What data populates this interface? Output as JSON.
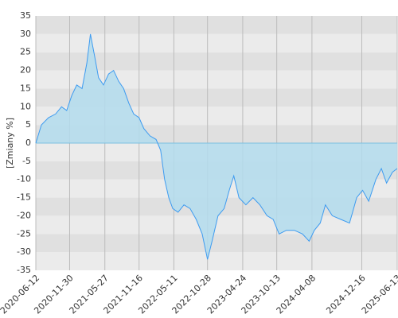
{
  "chart_data": {
    "type": "area",
    "y_label": "[Zmiany %]",
    "x": [
      "2020-06-12",
      "2020-07-10",
      "2020-08-15",
      "2020-09-20",
      "2020-10-20",
      "2020-11-15",
      "2020-12-10",
      "2021-01-05",
      "2021-02-01",
      "2021-02-25",
      "2021-03-15",
      "2021-04-05",
      "2021-04-25",
      "2021-05-20",
      "2021-06-15",
      "2021-07-10",
      "2021-08-05",
      "2021-08-30",
      "2021-09-25",
      "2021-10-20",
      "2021-11-16",
      "2021-12-10",
      "2022-01-10",
      "2022-02-10",
      "2022-03-05",
      "2022-03-25",
      "2022-04-15",
      "2022-05-05",
      "2022-06-01",
      "2022-07-01",
      "2022-08-01",
      "2022-09-01",
      "2022-10-01",
      "2022-10-28",
      "2022-11-20",
      "2022-12-20",
      "2023-01-20",
      "2023-02-15",
      "2023-03-10",
      "2023-04-05",
      "2023-05-10",
      "2023-06-15",
      "2023-07-20",
      "2023-08-25",
      "2023-09-25",
      "2023-10-25",
      "2023-12-01",
      "2024-01-10",
      "2024-02-20",
      "2024-03-25",
      "2024-04-20",
      "2024-05-20",
      "2024-06-15",
      "2024-07-20",
      "2024-09-01",
      "2024-10-15",
      "2024-11-20",
      "2024-12-20",
      "2025-01-20",
      "2025-02-25",
      "2025-03-25",
      "2025-04-20",
      "2025-05-20",
      "2025-06-13"
    ],
    "series": [
      {
        "color": "#3d9bf0",
        "fill": "#b3dced",
        "values": [
          0,
          5,
          7,
          8,
          10,
          9,
          13,
          16,
          15,
          22,
          30,
          24,
          18,
          16,
          19,
          20,
          17,
          15,
          11,
          8,
          7,
          4,
          2,
          1,
          -2,
          -10,
          -15,
          -18,
          -19,
          -17,
          -18,
          -21,
          -25,
          -32,
          -27,
          -20,
          -18,
          -13,
          -9,
          -15,
          -17,
          -15,
          -17,
          -20,
          -21,
          -25,
          -24,
          -24,
          -25,
          -27,
          -24,
          -22,
          -17,
          -20,
          -21,
          -22,
          -15,
          -13,
          -16,
          -10,
          -7,
          -11,
          -8,
          -7
        ]
      }
    ],
    "xlim": [
      "2020-06-12",
      "2025-06-13"
    ],
    "xticks": [
      "2020-06-12",
      "2020-11-30",
      "2021-05-27",
      "2021-11-16",
      "2022-05-11",
      "2022-10-28",
      "2023-04-24",
      "2023-10-13",
      "2024-04-08",
      "2024-12-16",
      "2025-06-13"
    ],
    "ylim": [
      -35,
      35
    ],
    "yticks": [
      -35,
      -30,
      -25,
      -20,
      -15,
      -10,
      -5,
      0,
      5,
      10,
      15,
      20,
      25,
      30,
      35
    ],
    "band_colors": [
      "#e0e0e0",
      "#ebebeb"
    ],
    "grid_color": "#bcbcbc"
  }
}
